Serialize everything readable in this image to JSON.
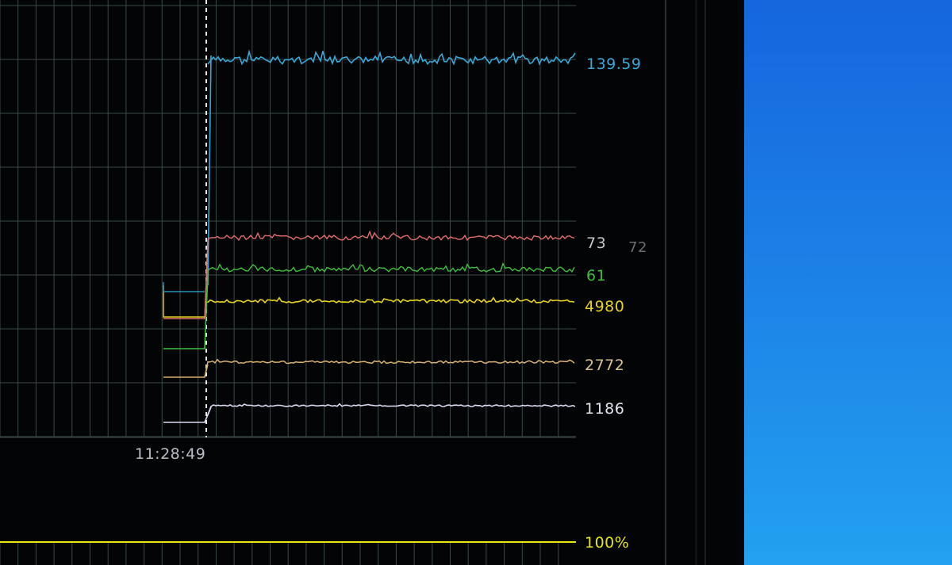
{
  "graph": {
    "time_marker": "11:28:49",
    "lower_graph_value": "100%",
    "series": [
      {
        "id": "fps",
        "current": "139.59",
        "color": "#3aa7d8"
      },
      {
        "id": "temp",
        "current": "73",
        "secondary": "72",
        "color": "#e06d6d"
      },
      {
        "id": "power",
        "current": "61",
        "color": "#3fbf3f"
      },
      {
        "id": "mem-clock",
        "current": "4980",
        "color": "#e6d21c"
      },
      {
        "id": "core-clock",
        "current": "2772",
        "color": "#d8b070"
      },
      {
        "id": "fan",
        "current": "1186",
        "color": "#d8d8ee"
      }
    ],
    "lower_color": "#e6e61a",
    "secondary_color": "#6a6e74",
    "grid_color": "#3b4a48"
  }
}
